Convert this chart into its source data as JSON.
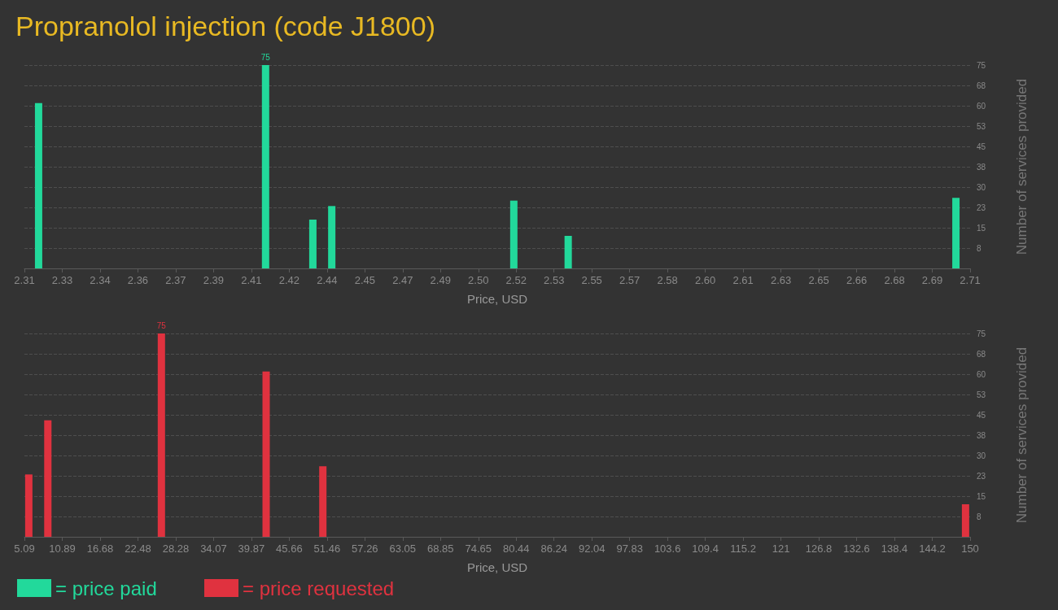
{
  "chart_data": [
    {
      "type": "bar",
      "title": "Propranolol injection (code J1800)",
      "xlabel": "Price, USD",
      "ylabel": "Number of services provided",
      "x": [
        2.316,
        2.412,
        2.432,
        2.44,
        2.517,
        2.54,
        2.704
      ],
      "series": [
        {
          "name": "= price paid",
          "color": "#22d99b",
          "values": [
            61,
            75,
            18,
            23,
            25,
            12,
            26
          ],
          "value_labels": [
            null,
            "75",
            null,
            null,
            null,
            null,
            null
          ]
        }
      ],
      "xlim": [
        2.31,
        2.71
      ],
      "xticks": [
        2.31,
        {
          "value": 2.326,
          "label": "2.33"
        },
        {
          "value": 2.342,
          "label": "2.34"
        },
        {
          "value": 2.358,
          "label": "2.36"
        },
        {
          "value": 2.374,
          "label": "2.37"
        },
        2.39,
        {
          "value": 2.406,
          "label": "2.41"
        },
        {
          "value": 2.422,
          "label": "2.42"
        },
        {
          "value": 2.438,
          "label": "2.44"
        },
        {
          "value": 2.454,
          "label": "2.45"
        },
        2.47,
        {
          "value": 2.486,
          "label": "2.49"
        },
        {
          "value": 2.502,
          "label": "2.50"
        },
        {
          "value": 2.518,
          "label": "2.52"
        },
        {
          "value": 2.534,
          "label": "2.53"
        },
        2.55,
        {
          "value": 2.566,
          "label": "2.57"
        },
        {
          "value": 2.582,
          "label": "2.58"
        },
        {
          "value": 2.598,
          "label": "2.60"
        },
        {
          "value": 2.614,
          "label": "2.61"
        },
        2.63,
        {
          "value": 2.646,
          "label": "2.65"
        },
        {
          "value": 2.662,
          "label": "2.66"
        },
        {
          "value": 2.678,
          "label": "2.68"
        },
        {
          "value": 2.694,
          "label": "2.69"
        },
        2.71
      ],
      "ylim": [
        0,
        75
      ],
      "yticks": [
        {
          "value": 7.5,
          "label": "8"
        },
        15,
        {
          "value": 22.5,
          "label": "23"
        },
        30,
        {
          "value": 37.5,
          "label": "38"
        },
        45,
        {
          "value": 52.5,
          "label": "53"
        },
        60,
        {
          "value": 67.5,
          "label": "68"
        },
        75
      ],
      "grid": "y",
      "legend": "bottom left"
    },
    {
      "type": "bar",
      "xlabel": "Price, USD",
      "ylabel": "Number of services provided",
      "x": [
        5.76,
        8.68,
        26.08,
        42.13,
        50.82,
        149.3
      ],
      "series": [
        {
          "name": "= price requested",
          "color": "#e0323f",
          "values": [
            23,
            43,
            75,
            61,
            26,
            12
          ],
          "value_labels": [
            null,
            null,
            "75",
            null,
            null,
            null
          ]
        }
      ],
      "xlim": [
        5.09,
        150
      ],
      "xticks": [
        5.09,
        {
          "value": 10.8864,
          "label": "10.89"
        },
        {
          "value": 16.6828,
          "label": "16.68"
        },
        {
          "value": 22.4792,
          "label": "22.48"
        },
        {
          "value": 28.2756,
          "label": "28.28"
        },
        {
          "value": 34.072,
          "label": "34.07"
        },
        {
          "value": 39.8684,
          "label": "39.87"
        },
        {
          "value": 45.6648,
          "label": "45.66"
        },
        {
          "value": 51.4612,
          "label": "51.46"
        },
        {
          "value": 57.2576,
          "label": "57.26"
        },
        {
          "value": 63.054,
          "label": "63.05"
        },
        {
          "value": 68.8504,
          "label": "68.85"
        },
        {
          "value": 74.6468,
          "label": "74.65"
        },
        {
          "value": 80.4432,
          "label": "80.44"
        },
        {
          "value": 86.2396,
          "label": "86.24"
        },
        {
          "value": 92.036,
          "label": "92.04"
        },
        {
          "value": 97.8324,
          "label": "97.83"
        },
        {
          "value": 103.6288,
          "label": "103.6"
        },
        {
          "value": 109.4252,
          "label": "109.4"
        },
        {
          "value": 115.2216,
          "label": "115.2"
        },
        {
          "value": 121.018,
          "label": "121"
        },
        {
          "value": 126.8144,
          "label": "126.8"
        },
        {
          "value": 132.6108,
          "label": "132.6"
        },
        {
          "value": 138.4072,
          "label": "138.4"
        },
        {
          "value": 144.2036,
          "label": "144.2"
        },
        150
      ],
      "ylim": [
        0,
        75
      ],
      "yticks": [
        {
          "value": 7.5,
          "label": "8"
        },
        15,
        {
          "value": 22.5,
          "label": "23"
        },
        30,
        {
          "value": 37.5,
          "label": "38"
        },
        45,
        {
          "value": 52.5,
          "label": "53"
        },
        60,
        {
          "value": 67.5,
          "label": "68"
        },
        75
      ],
      "grid": "y",
      "legend": "bottom left"
    }
  ]
}
